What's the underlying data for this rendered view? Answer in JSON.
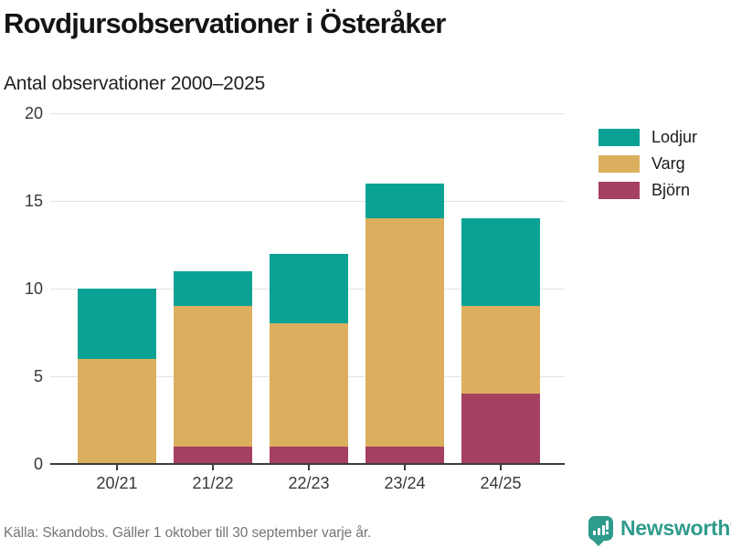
{
  "header": {
    "title": "Rovdjursobservationer i Österåker",
    "subtitle": "Antal observationer 2000–2025"
  },
  "chart_data": {
    "type": "bar",
    "stacked": true,
    "title": "Rovdjursobservationer i Österåker",
    "subtitle": "Antal observationer 2000–2025",
    "categories": [
      "20/21",
      "21/22",
      "22/23",
      "23/24",
      "24/25"
    ],
    "series": [
      {
        "name": "Lodjur",
        "color": "#0AA295",
        "values": [
          4,
          2,
          4,
          2,
          5
        ]
      },
      {
        "name": "Varg",
        "color": "#DBAF5E",
        "values": [
          6,
          8,
          7,
          13,
          5
        ]
      },
      {
        "name": "Björn",
        "color": "#A54061",
        "values": [
          0,
          1,
          1,
          1,
          4
        ]
      }
    ],
    "totals": [
      10,
      11,
      12,
      16,
      14
    ],
    "xlabel": "",
    "ylabel": "",
    "ylim": [
      0,
      20
    ],
    "yticks": [
      0,
      5,
      10,
      15,
      20
    ],
    "grid": true,
    "legend_position": "right"
  },
  "footer": {
    "source": "Källa: Skandobs. Gäller 1 oktober till 30 september varje år.",
    "brand": "Newsworthy"
  },
  "colors": {
    "axis": "#3c3c3c",
    "grid": "#e2e2e2",
    "axis_text": "#383838",
    "muted_text": "#757575",
    "brand": "#2F9B8C"
  }
}
